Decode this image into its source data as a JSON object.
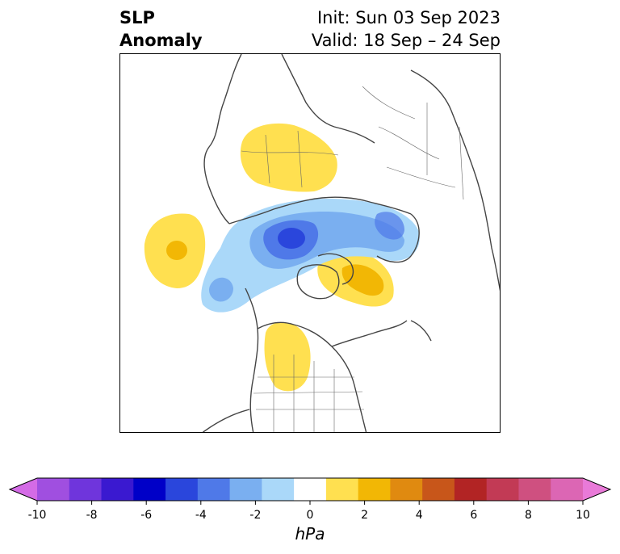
{
  "header": {
    "title_line1": "SLP",
    "title_line2": "Anomaly",
    "init_text": "Init: Sun 03 Sep 2023",
    "valid_text": "Valid: 18 Sep – 24 Sep"
  },
  "colorbar": {
    "unit": "hPa",
    "ticks": [
      "-10",
      "-8",
      "-6",
      "-4",
      "-2",
      "0",
      "2",
      "4",
      "6",
      "8",
      "10"
    ],
    "colors": [
      "#d46be6",
      "#a04fe0",
      "#6f35dc",
      "#3a19d0",
      "#0000c8",
      "#2a46dc",
      "#4f79e8",
      "#7aaff0",
      "#aad8f9",
      "#ffffff",
      "#ffe050",
      "#f2b705",
      "#e08a10",
      "#c8561a",
      "#b22424",
      "#c23a55",
      "#cf5080",
      "#dc66b4",
      "#e97ad8"
    ]
  }
}
